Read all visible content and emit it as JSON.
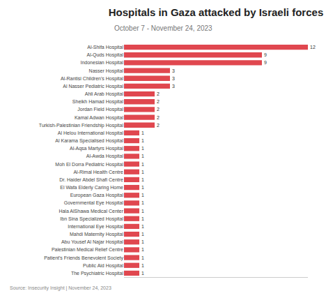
{
  "chart_data": {
    "type": "bar",
    "title": "Hospitals in Gaza attacked by Israeli forces",
    "subtitle": "October 7 - November 24, 2023",
    "annotations": [
      "Source: Insecurity Insight | November 24, 2023"
    ],
    "orientation": "horizontal",
    "categories": [
      "Al-Shifa Hospital",
      "Al-Quds Hospital",
      "Indonesian Hospital",
      "Nasser Hospital",
      "Al-Rantisi Children's Hospital",
      "Al Nasser Pediatric Hospital",
      "Ahli Arab Hospital",
      "Sheikh Hamad Hospital",
      "Jordan Field Hospital",
      "Kamal Adwan Hospital",
      "Turkish-Palestinian Friendship Hospital",
      "Al Helou International Hospital",
      "Al Karama Specialised Hospital",
      "Al-Aqsa Martyrs Hospital",
      "Al-Awda Hospital",
      "Moh El Dorra Pediatric Hospital",
      "Al-Rimal Health Centre",
      "Dr. Haider Abdel Shafi Centre",
      "El Wafa Elderly Caring Home",
      "European Gaza Hospital",
      "Governmental Eye Hospital",
      "Hala AlShawa Medical Center",
      "Ibn Sina Specialized Hospital",
      "International Eye Hospital",
      "Mahdi Maternity Hospital",
      "Abu Yousef Al Najar Hospital",
      "Palestinian Medical Relief Centre",
      "Patient's Friends Benevolent Society",
      "Public Aid Hospital",
      "The Psychiatric Hospital"
    ],
    "values": [
      12,
      9,
      9,
      3,
      3,
      3,
      2,
      2,
      2,
      2,
      2,
      1,
      1,
      1,
      1,
      1,
      1,
      1,
      1,
      1,
      1,
      1,
      1,
      1,
      1,
      1,
      1,
      1,
      1,
      1
    ],
    "color": "#e0474f",
    "xlim": [
      0,
      12
    ],
    "data_labels": true,
    "tick_labels": "y",
    "grid": false
  }
}
